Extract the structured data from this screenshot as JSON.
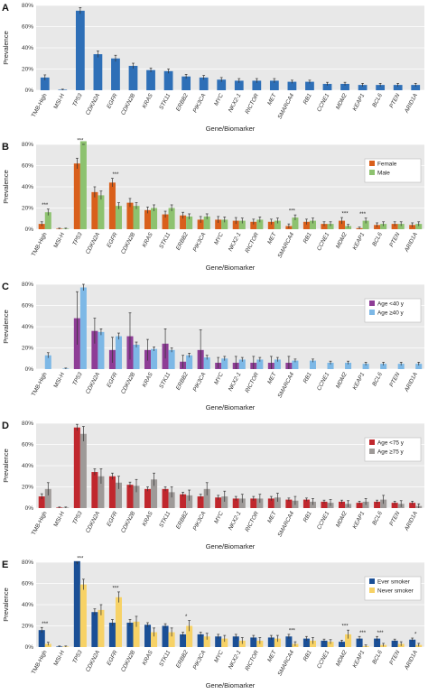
{
  "chart_data": [
    {
      "panel": "A",
      "type": "bar",
      "ylabel": "Prevalence",
      "xlabel": "Gene/Biomarker",
      "ylim": [
        0,
        80
      ],
      "yticks": [
        "0%",
        "20%",
        "40%",
        "60%",
        "80%"
      ],
      "grid": true,
      "categories": [
        "TMB-High",
        "MSI-H",
        "TP53",
        "CDKN2A",
        "EGFR",
        "CDKN2B",
        "KRAS",
        "STK11",
        "ERBB2",
        "PIK3CA",
        "MYC",
        "NKX2-1",
        "RICTOR",
        "MET",
        "SMARCA4",
        "RB1",
        "CCNE1",
        "MDM2",
        "KEAP1",
        "BCL6",
        "PTEN",
        "ARID1A"
      ],
      "series": [
        {
          "color": "#2e6fb7",
          "values": [
            12,
            0.5,
            75,
            34,
            30,
            23,
            19,
            18,
            13,
            12,
            10,
            9,
            9,
            9,
            8,
            8,
            6,
            6,
            5,
            5,
            5,
            5
          ],
          "errors": [
            2.5,
            0.5,
            3,
            3,
            3,
            2.5,
            2,
            2,
            2,
            2,
            2,
            2,
            2,
            2,
            1.5,
            1.5,
            1.5,
            1.5,
            1.5,
            1.5,
            1.5,
            1.5
          ]
        }
      ]
    },
    {
      "panel": "B",
      "type": "bar",
      "ylabel": "Prevalence",
      "xlabel": "Gene/Biomarker",
      "ylim": [
        0,
        80
      ],
      "yticks": [
        "0%",
        "20%",
        "40%",
        "60%",
        "80%"
      ],
      "grid": true,
      "legend_position": "top-right",
      "categories": [
        "TMB-High",
        "MSI-H",
        "TP53",
        "CDKN2A",
        "EGFR",
        "CDKN2B",
        "KRAS",
        "STK11",
        "ERBB2",
        "PIK3CA",
        "MYC",
        "NKX2-1",
        "RICTOR",
        "MET",
        "SMARCA4",
        "RB1",
        "CCNE1",
        "MDM2",
        "KEAP1",
        "BCL6",
        "PTEN",
        "ARID1A"
      ],
      "series": [
        {
          "name": "Female",
          "color": "#d95f1b",
          "values": [
            5,
            0.5,
            62,
            35,
            44,
            25,
            18,
            14,
            13,
            9,
            9,
            8,
            7,
            7,
            3,
            7,
            5,
            8,
            1,
            4,
            5,
            4
          ],
          "errors": [
            2,
            0.5,
            5,
            5,
            4,
            4,
            3,
            3,
            3,
            3,
            3,
            3,
            2.5,
            2.5,
            2,
            2.5,
            2,
            3,
            1,
            2,
            2,
            2
          ]
        },
        {
          "name": "Male",
          "color": "#8dc26f",
          "values": [
            16,
            0.5,
            83,
            32,
            22,
            22,
            20,
            20,
            12,
            12,
            9,
            8,
            9,
            8,
            11,
            8,
            5,
            3,
            8,
            5,
            5,
            5
          ],
          "errors": [
            3,
            0.5,
            3,
            4,
            3,
            3,
            3,
            3,
            2.5,
            2.5,
            2.5,
            2.5,
            2.5,
            2.5,
            2.5,
            2.5,
            2,
            1.5,
            2.5,
            2,
            2,
            2
          ]
        }
      ],
      "significance": [
        {
          "category": "TMB-High",
          "label": "***"
        },
        {
          "category": "TP53",
          "label": "***"
        },
        {
          "category": "EGFR",
          "label": "***"
        },
        {
          "category": "SMARCA4",
          "label": "***"
        },
        {
          "category": "MDM2",
          "label": "***"
        },
        {
          "category": "KEAP1",
          "label": "***"
        }
      ]
    },
    {
      "panel": "C",
      "type": "bar",
      "ylabel": "Prevalence",
      "xlabel": "Gene/Biomarker",
      "ylim": [
        0,
        80
      ],
      "yticks": [
        "0%",
        "20%",
        "40%",
        "60%",
        "80%"
      ],
      "grid": true,
      "legend_position": "top-right",
      "categories": [
        "TMB-High",
        "MSI-H",
        "TP53",
        "CDKN2A",
        "EGFR",
        "CDKN2B",
        "KRAS",
        "STK11",
        "ERBB2",
        "PIK3CA",
        "MYC",
        "NKX2-1",
        "RICTOR",
        "MET",
        "SMARCA4",
        "RB1",
        "CCNE1",
        "MDM2",
        "KEAP1",
        "BCL6",
        "PTEN",
        "ARID1A"
      ],
      "series": [
        {
          "name": "Age <40 y",
          "color": "#8e3d96",
          "values": [
            0,
            0,
            48,
            36,
            18,
            31,
            18,
            24,
            7,
            18,
            6,
            6,
            6,
            6,
            6,
            0,
            0,
            0,
            0,
            0,
            0,
            0
          ],
          "errors": [
            0,
            0,
            25,
            12,
            12,
            22,
            10,
            14,
            6,
            19,
            5,
            6,
            6,
            6,
            6,
            0,
            0,
            0,
            0,
            0,
            0,
            0
          ]
        },
        {
          "name": "Age ≥40 y",
          "color": "#7db8e6",
          "values": [
            13,
            0.5,
            77,
            35,
            31,
            23,
            19,
            18,
            13,
            11,
            10,
            9,
            9,
            9,
            8,
            8,
            6,
            6,
            5,
            5,
            5,
            5
          ],
          "errors": [
            2.5,
            0.5,
            3,
            3,
            3,
            2.5,
            2,
            2,
            2,
            2,
            2,
            2,
            2,
            2,
            1.5,
            1.5,
            1.5,
            1.5,
            1.5,
            1.5,
            1.5,
            1.5
          ]
        }
      ]
    },
    {
      "panel": "D",
      "type": "bar",
      "ylabel": "Prevalence",
      "xlabel": "Gene/Biomarker",
      "ylim": [
        0,
        80
      ],
      "yticks": [
        "0%",
        "20%",
        "40%",
        "60%",
        "80%"
      ],
      "grid": true,
      "legend_position": "top-right",
      "categories": [
        "TMB-High",
        "MSI-H",
        "TP53",
        "CDKN2A",
        "EGFR",
        "CDKN2B",
        "KRAS",
        "STK11",
        "ERBB2",
        "PIK3CA",
        "MYC",
        "NKX2-1",
        "RICTOR",
        "MET",
        "SMARCA4",
        "RB1",
        "CCNE1",
        "MDM2",
        "KEAP1",
        "BCL6",
        "PTEN",
        "ARID1A"
      ],
      "series": [
        {
          "name": "Age <75 y",
          "color": "#c0272d",
          "values": [
            11,
            0.5,
            76,
            34,
            30,
            22,
            18,
            18,
            13,
            11,
            10,
            9,
            9,
            9,
            8,
            8,
            6,
            6,
            5,
            6,
            5,
            5
          ],
          "errors": [
            2.5,
            0.5,
            3,
            3,
            3,
            2.5,
            2,
            2,
            2,
            2,
            2,
            2,
            2,
            2,
            1.5,
            1.5,
            1.5,
            1.5,
            1.5,
            1.5,
            1.5,
            1.5
          ]
        },
        {
          "name": "Age ≥75 y",
          "color": "#9e9a98",
          "values": [
            18,
            0.5,
            70,
            30,
            24,
            21,
            27,
            15,
            12,
            18,
            11,
            9,
            9,
            10,
            7,
            6,
            5,
            4,
            6,
            8,
            4,
            2
          ],
          "errors": [
            6,
            0.5,
            7,
            7,
            6,
            6,
            6,
            5,
            5,
            6,
            5,
            4,
            4,
            4,
            4,
            3,
            3,
            3,
            3,
            4,
            3,
            2
          ]
        }
      ]
    },
    {
      "panel": "E",
      "type": "bar",
      "ylabel": "Prevalence",
      "xlabel": "Gene/Biomarker",
      "ylim": [
        0,
        80
      ],
      "yticks": [
        "0%",
        "20%",
        "40%",
        "60%",
        "80%"
      ],
      "grid": true,
      "legend_position": "top-right",
      "categories": [
        "TMB-High",
        "MSI-H",
        "TP53",
        "CDKN2A",
        "EGFR",
        "CDKN2B",
        "KRAS",
        "STK11",
        "ERBB2",
        "PIK3CA",
        "MYC",
        "NKX2-1",
        "RICTOR",
        "MET",
        "SMARCA4",
        "RB1",
        "CCNE1",
        "MDM2",
        "KEAP1",
        "BCL6",
        "PTEN",
        "ARID1A"
      ],
      "series": [
        {
          "name": "Ever smoker",
          "color": "#1a4f96",
          "values": [
            16,
            0.5,
            81,
            33,
            23,
            23,
            21,
            20,
            12,
            12,
            10,
            10,
            9,
            9,
            10,
            8,
            6,
            5,
            8,
            8,
            6,
            7
          ],
          "errors": [
            2.5,
            0.5,
            3,
            3,
            3,
            3,
            2,
            2,
            2,
            2,
            2,
            2,
            2,
            2,
            2,
            2,
            1.5,
            1.5,
            2,
            2,
            1.5,
            1.5
          ]
        },
        {
          "name": "Never smoker",
          "color": "#f7d266",
          "values": [
            3,
            0.5,
            59,
            35,
            47,
            24,
            14,
            14,
            20,
            10,
            8,
            6,
            6,
            8,
            3,
            6,
            5,
            12,
            1,
            2,
            3,
            2
          ],
          "errors": [
            1.5,
            0.5,
            5,
            5,
            5,
            5,
            4,
            4,
            5,
            3,
            3,
            3,
            3,
            3,
            2,
            3,
            2,
            4,
            1,
            1.5,
            2,
            1.5
          ]
        }
      ],
      "significance": [
        {
          "category": "TMB-High",
          "label": "***"
        },
        {
          "category": "TP53",
          "label": "***"
        },
        {
          "category": "EGFR",
          "label": "***"
        },
        {
          "category": "ERBB2",
          "label": "*"
        },
        {
          "category": "SMARCA4",
          "label": "***"
        },
        {
          "category": "MDM2",
          "label": "***"
        },
        {
          "category": "KEAP1",
          "label": "***"
        },
        {
          "category": "BCL6",
          "label": "***"
        },
        {
          "category": "ARID1A",
          "label": "*"
        }
      ]
    }
  ]
}
